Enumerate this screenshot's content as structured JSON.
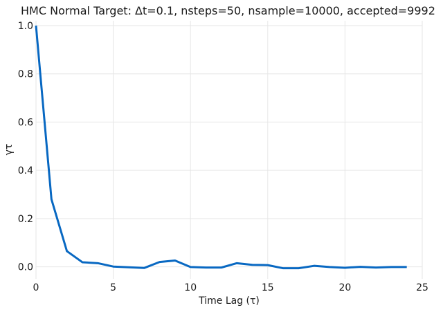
{
  "chart_data": {
    "type": "line",
    "title": "HMC Normal Target: Δt=0.1, nsteps=50, nsample=10000, accepted=9992",
    "xlabel": "Time Lag (τ)",
    "ylabel": "γτ",
    "xlim": [
      0,
      25
    ],
    "ylim": [
      -0.05,
      1.02
    ],
    "xticks": [
      0,
      5,
      10,
      15,
      20,
      25
    ],
    "yticks": [
      0.0,
      0.2,
      0.4,
      0.6,
      0.8,
      1.0
    ],
    "grid": true,
    "series": [
      {
        "color": "#0868c2",
        "x": [
          0,
          1,
          2,
          3,
          4,
          5,
          6,
          7,
          8,
          9,
          10,
          11,
          12,
          13,
          14,
          15,
          16,
          17,
          18,
          19,
          20,
          21,
          22,
          23,
          24
        ],
        "y": [
          1.0,
          0.28,
          0.065,
          0.019,
          0.015,
          0.001,
          -0.002,
          -0.005,
          0.02,
          0.026,
          -0.001,
          -0.003,
          -0.003,
          0.015,
          0.008,
          0.007,
          -0.006,
          -0.006,
          0.004,
          -0.001,
          -0.004,
          0.0,
          -0.003,
          -0.001,
          -0.001
        ]
      }
    ]
  }
}
